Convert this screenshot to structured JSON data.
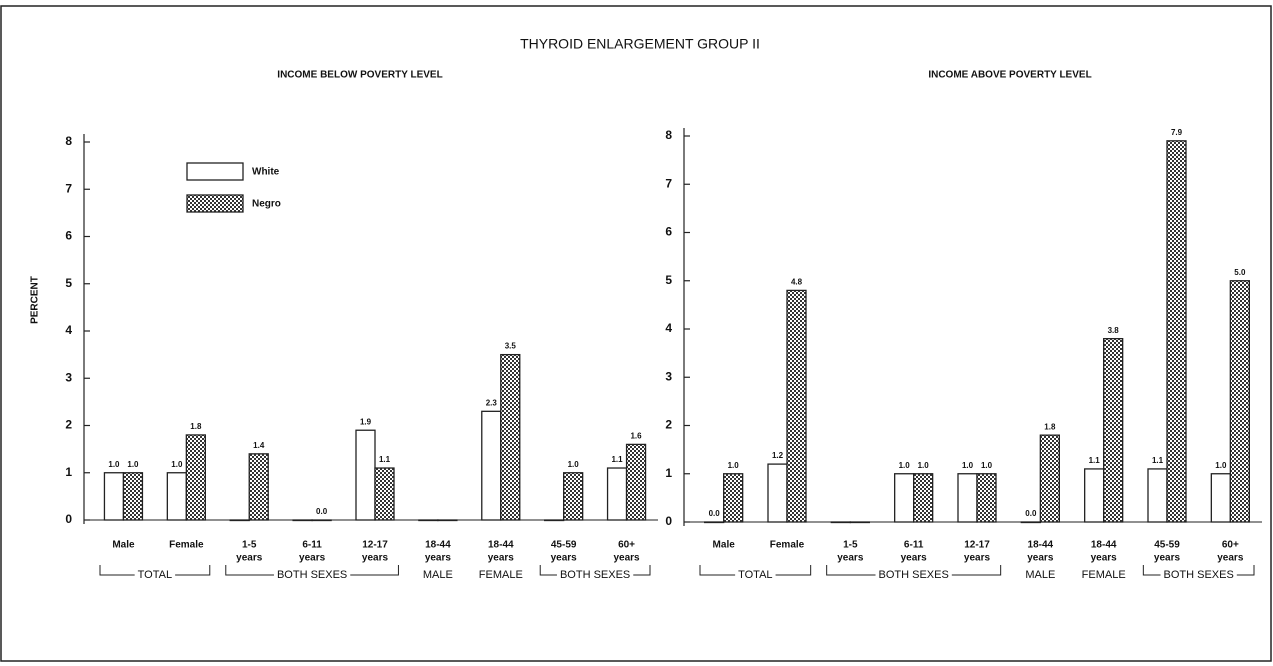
{
  "title": "THYROID ENLARGEMENT GROUP II",
  "chart_data": [
    {
      "type": "bar",
      "title": "INCOME BELOW POVERTY LEVEL",
      "ylabel": "PERCENT",
      "categories": [
        [
          "Male"
        ],
        [
          "Female"
        ],
        [
          "1-5",
          "years"
        ],
        [
          "6-11",
          "years"
        ],
        [
          "12-17",
          "years"
        ],
        [
          "18-44",
          "years"
        ],
        [
          "18-44",
          "years"
        ],
        [
          "45-59",
          "years"
        ],
        [
          "60+",
          "years"
        ]
      ],
      "groups": [
        {
          "label": "TOTAL",
          "first": 0,
          "last": 1
        },
        {
          "label": "BOTH SEXES",
          "first": 2,
          "last": 4
        },
        {
          "label": "MALE",
          "first": 5,
          "last": 5
        },
        {
          "label": "FEMALE",
          "first": 6,
          "last": 6
        },
        {
          "label": "BOTH SEXES",
          "first": 7,
          "last": 8
        }
      ],
      "series": [
        {
          "name": "White",
          "color": "#ffffff",
          "values": [
            1.0,
            1.0,
            0.0,
            0.0,
            1.9,
            0.0,
            2.3,
            0.0,
            1.1
          ],
          "value_labels": [
            "1.0",
            "1.0",
            null,
            null,
            "1.9",
            null,
            "2.3",
            null,
            "1.1"
          ]
        },
        {
          "name": "Negro",
          "color": "#333333",
          "pattern": "checker",
          "values": [
            1.0,
            1.8,
            1.4,
            0.0,
            1.1,
            0.0,
            3.5,
            1.0,
            1.6
          ],
          "value_labels": [
            "1.0",
            "1.8",
            "1.4",
            "0.0",
            "1.1",
            null,
            "3.5",
            "1.0",
            "1.6"
          ]
        }
      ],
      "ylim": [
        0,
        8
      ],
      "yticks": [
        0,
        1,
        2,
        3,
        4,
        5,
        6,
        7,
        8
      ],
      "legend": "upper left"
    },
    {
      "type": "bar",
      "title": "INCOME ABOVE POVERTY LEVEL",
      "categories": [
        [
          "Male"
        ],
        [
          "Female"
        ],
        [
          "1-5",
          "years"
        ],
        [
          "6-11",
          "years"
        ],
        [
          "12-17",
          "years"
        ],
        [
          "18-44",
          "years"
        ],
        [
          "18-44",
          "years"
        ],
        [
          "45-59",
          "years"
        ],
        [
          "60+",
          "years"
        ]
      ],
      "groups": [
        {
          "label": "TOTAL",
          "first": 0,
          "last": 1
        },
        {
          "label": "BOTH SEXES",
          "first": 2,
          "last": 4
        },
        {
          "label": "MALE",
          "first": 5,
          "last": 5
        },
        {
          "label": "FEMALE",
          "first": 6,
          "last": 6
        },
        {
          "label": "BOTH SEXES",
          "first": 7,
          "last": 8
        }
      ],
      "series": [
        {
          "name": "White",
          "color": "#ffffff",
          "values": [
            0.0,
            1.2,
            0.0,
            1.0,
            1.0,
            0.0,
            1.1,
            1.1,
            1.0
          ],
          "value_labels": [
            "0.0",
            "1.2",
            null,
            "1.0",
            "1.0",
            "0.0",
            "1.1",
            "1.1",
            "1.0"
          ]
        },
        {
          "name": "Negro",
          "color": "#333333",
          "pattern": "checker",
          "values": [
            1.0,
            4.8,
            0.0,
            1.0,
            1.0,
            1.8,
            3.8,
            7.9,
            5.0
          ],
          "value_labels": [
            "1.0",
            "4.8",
            null,
            "1.0",
            "1.0",
            "1.8",
            "3.8",
            "7.9",
            "5.0"
          ]
        }
      ],
      "ylim": [
        0,
        8
      ],
      "yticks": [
        0,
        1,
        2,
        3,
        4,
        5,
        6,
        7,
        8
      ]
    }
  ]
}
